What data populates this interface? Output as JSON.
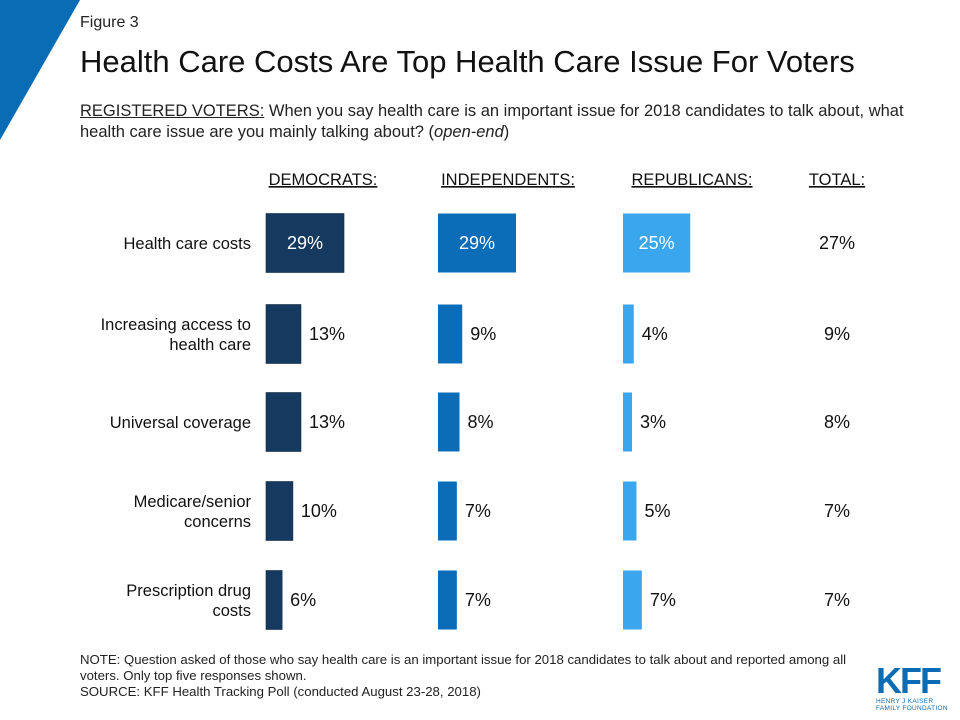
{
  "figure_label": "Figure 3",
  "subtitle": {
    "lead": "REGISTERED VOTERS:",
    "text": " When you say health care is an important issue for 2018 candidates to talk about, what health care issue are you mainly talking about? (",
    "italic": "open-end",
    "close": ")"
  },
  "notes": {
    "note": "NOTE: Question asked of those who say health care is an important issue for 2018 candidates to talk about and reported among all voters. Only top five responses shown.",
    "source": "SOURCE: KFF Health Tracking Poll (conducted August 23-28, 2018)"
  },
  "logo": {
    "mark": "KFF",
    "line1": "HENRY J KAISER",
    "line2": "FAMILY FOUNDATION"
  },
  "colors": {
    "corner": "#0a6cb5",
    "democrats": "#163a5f",
    "independents": "#0b6cb8",
    "republicans": "#3aa6ee"
  },
  "chart_data": {
    "type": "bar",
    "orientation": "horizontal",
    "title": "Health Care Costs Are Top Health Care Issue For Voters",
    "categories": [
      "Health care costs",
      "Increasing access to health care",
      "Universal coverage",
      "Medicare/senior concerns",
      "Prescription drug costs"
    ],
    "series": [
      {
        "name": "DEMOCRATS:",
        "values": [
          29,
          13,
          13,
          10,
          6
        ]
      },
      {
        "name": "INDEPENDENTS:",
        "values": [
          29,
          9,
          8,
          7,
          7
        ]
      },
      {
        "name": "REPUBLICANS:",
        "values": [
          25,
          4,
          3,
          5,
          7
        ]
      }
    ],
    "total": {
      "name": "TOTAL:",
      "values": [
        27,
        9,
        8,
        7,
        7
      ]
    },
    "value_suffix": "%",
    "xlim": [
      0,
      100
    ]
  }
}
